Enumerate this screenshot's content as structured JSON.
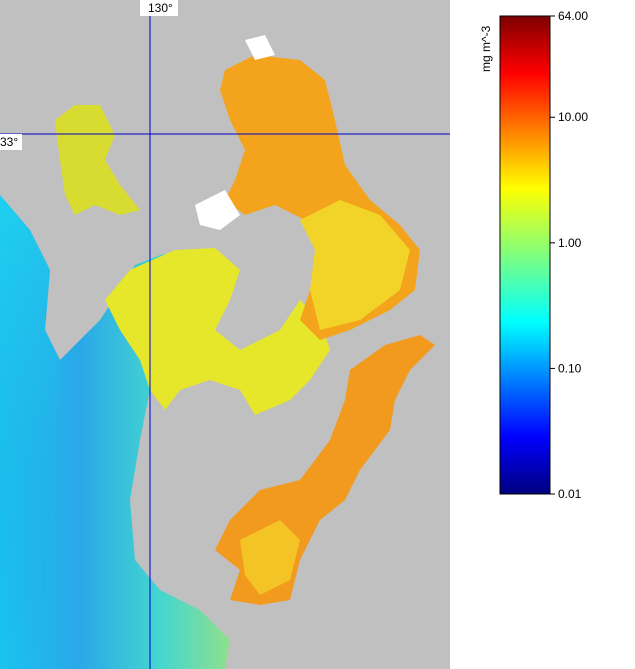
{
  "map": {
    "grid_labels": {
      "longitude": "130°",
      "latitude": "33°"
    },
    "colorbar": {
      "title": "mg m^-3",
      "range": [
        0.01,
        64
      ],
      "log": true,
      "ticks": [
        {
          "value": 64,
          "label": "64.00"
        },
        {
          "value": 10,
          "label": "10.00"
        },
        {
          "value": 1,
          "label": "1.00"
        },
        {
          "value": 0.1,
          "label": "0.10"
        },
        {
          "value": 0.01,
          "label": "0.01"
        }
      ]
    }
  }
}
